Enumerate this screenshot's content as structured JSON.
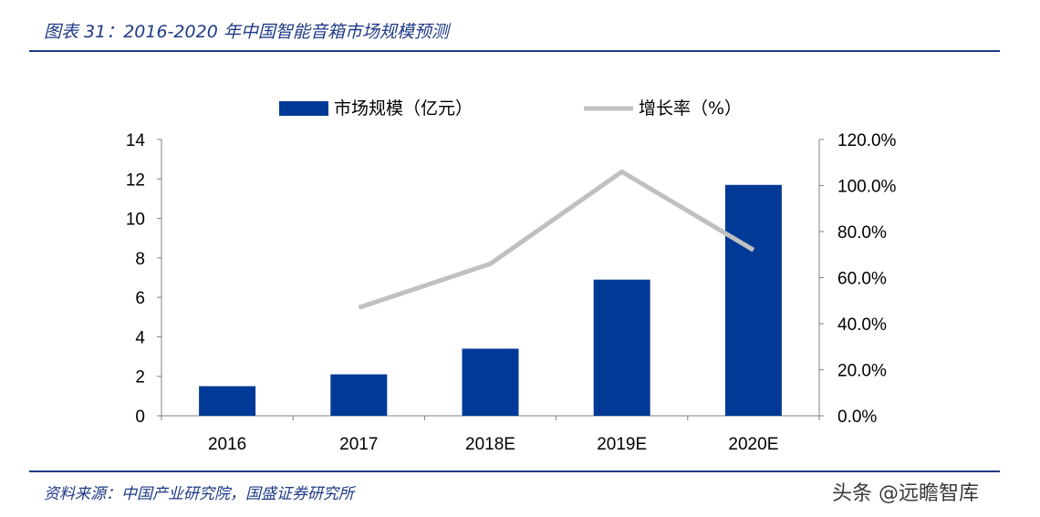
{
  "header": {
    "title": "图表 31：2016-2020 年中国智能音箱市场规模预测"
  },
  "footer": {
    "source": "资料来源：中国产业研究院，国盛证券研究所",
    "watermark": "头条 @远瞻智库"
  },
  "colors": {
    "bar": "#003a96",
    "line": "#c0c0c0",
    "accent": "#1f3b86",
    "axis": "#808080"
  },
  "chart_data": {
    "type": "bar",
    "categories": [
      "2016",
      "2017",
      "2018E",
      "2019E",
      "2020E"
    ],
    "series": [
      {
        "name": "市场规模（亿元）",
        "type": "bar",
        "axis": "left",
        "values": [
          1.5,
          2.1,
          3.4,
          6.9,
          11.7
        ]
      },
      {
        "name": "增长率（%）",
        "type": "line",
        "axis": "right",
        "values": [
          null,
          0.47,
          0.66,
          1.06,
          0.72
        ]
      }
    ],
    "ylim": [
      0,
      14
    ],
    "y_ticks": [
      "0",
      "2",
      "4",
      "6",
      "8",
      "10",
      "12",
      "14"
    ],
    "y2lim": [
      0,
      1.2
    ],
    "y2_ticks": [
      "0.0%",
      "20.0%",
      "40.0%",
      "60.0%",
      "80.0%",
      "100.0%",
      "120.0%"
    ],
    "grid": false,
    "legend_position": "top-center"
  }
}
